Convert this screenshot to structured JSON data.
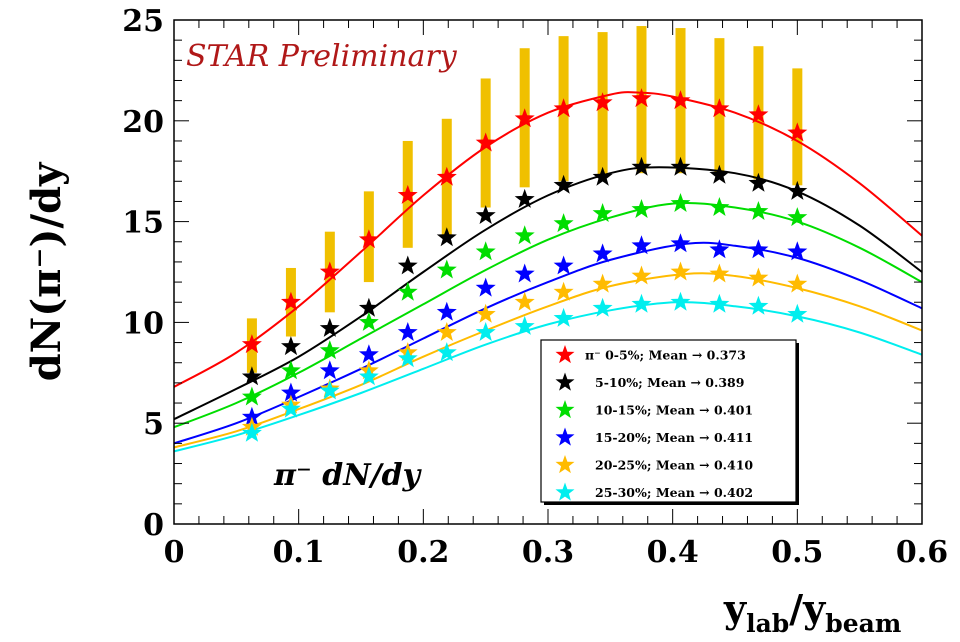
{
  "chart_data": {
    "type": "scatter",
    "title": "",
    "xlabel": {
      "main": "y",
      "sub1": "lab",
      "mid": "/y",
      "sub2": "beam"
    },
    "ylabel": "dN(π⁻)/dy",
    "xlim": [
      0,
      0.6
    ],
    "ylim": [
      0,
      25
    ],
    "xticks": [
      "0",
      "0.1",
      "0.2",
      "0.3",
      "0.4",
      "0.5",
      "0.6"
    ],
    "yticks": [
      "0",
      "5",
      "10",
      "15",
      "20",
      "25"
    ],
    "annotations": {
      "preliminary": "STAR Preliminary",
      "quantity": "π⁻ dN/dy"
    },
    "legend_position": "bottom-right",
    "x": [
      0.0625,
      0.0938,
      0.125,
      0.1563,
      0.1875,
      0.2188,
      0.25,
      0.2813,
      0.3125,
      0.3438,
      0.375,
      0.4063,
      0.4375,
      0.4688,
      0.5
    ],
    "systematic_band": {
      "color": "#f0c000",
      "low": [
        7.5,
        9.3,
        10.5,
        12.0,
        13.7,
        14.2,
        15.7,
        16.7,
        17.0,
        17.3,
        17.4,
        17.4,
        17.3,
        17.1,
        16.8
      ],
      "high": [
        10.2,
        12.7,
        14.5,
        16.5,
        19.0,
        20.1,
        22.1,
        23.6,
        24.2,
        24.4,
        24.7,
        24.6,
        24.1,
        23.7,
        22.6
      ]
    },
    "series": [
      {
        "name": "π⁻ 0-5%; Mean",
        "mean": "→ 0.373",
        "color": "#ff0000",
        "values": [
          8.9,
          11.0,
          12.5,
          14.1,
          16.3,
          17.2,
          18.9,
          20.1,
          20.6,
          20.9,
          21.1,
          21.0,
          20.6,
          20.3,
          19.4
        ],
        "curve": [
          [
            0,
            6.8
          ],
          [
            0.05,
            8.5
          ],
          [
            0.1,
            10.8
          ],
          [
            0.15,
            13.5
          ],
          [
            0.2,
            16.3
          ],
          [
            0.25,
            18.7
          ],
          [
            0.3,
            20.4
          ],
          [
            0.35,
            21.3
          ],
          [
            0.373,
            21.4
          ],
          [
            0.4,
            21.2
          ],
          [
            0.45,
            20.4
          ],
          [
            0.5,
            19.0
          ],
          [
            0.55,
            16.9
          ],
          [
            0.6,
            14.3
          ]
        ]
      },
      {
        "name": "5-10%; Mean",
        "mean": "→ 0.389",
        "color": "#000000",
        "values": [
          7.3,
          8.8,
          9.7,
          10.7,
          12.8,
          14.2,
          15.3,
          16.1,
          16.8,
          17.2,
          17.7,
          17.7,
          17.3,
          16.9,
          16.5
        ],
        "curve": [
          [
            0,
            5.2
          ],
          [
            0.05,
            6.7
          ],
          [
            0.1,
            8.3
          ],
          [
            0.15,
            10.3
          ],
          [
            0.2,
            12.5
          ],
          [
            0.25,
            14.6
          ],
          [
            0.3,
            16.3
          ],
          [
            0.35,
            17.4
          ],
          [
            0.389,
            17.7
          ],
          [
            0.45,
            17.4
          ],
          [
            0.5,
            16.5
          ],
          [
            0.55,
            14.8
          ],
          [
            0.6,
            12.5
          ]
        ]
      },
      {
        "name": "10-15%; Mean",
        "mean": "→ 0.401",
        "color": "#00dd00",
        "values": [
          6.3,
          7.6,
          8.6,
          10.0,
          11.5,
          12.6,
          13.5,
          14.3,
          14.9,
          15.4,
          15.6,
          15.9,
          15.7,
          15.5,
          15.2
        ],
        "curve": [
          [
            0,
            4.8
          ],
          [
            0.05,
            6.0
          ],
          [
            0.1,
            7.5
          ],
          [
            0.15,
            9.2
          ],
          [
            0.2,
            10.9
          ],
          [
            0.25,
            12.6
          ],
          [
            0.3,
            14.1
          ],
          [
            0.35,
            15.2
          ],
          [
            0.401,
            15.9
          ],
          [
            0.45,
            15.7
          ],
          [
            0.5,
            15.0
          ],
          [
            0.55,
            13.7
          ],
          [
            0.6,
            12.0
          ]
        ]
      },
      {
        "name": "15-20%; Mean",
        "mean": "→ 0.411",
        "color": "#0000ff",
        "values": [
          5.3,
          6.5,
          7.6,
          8.4,
          9.5,
          10.5,
          11.7,
          12.4,
          12.8,
          13.4,
          13.8,
          13.9,
          13.6,
          13.6,
          13.5
        ],
        "curve": [
          [
            0,
            4.0
          ],
          [
            0.05,
            5.0
          ],
          [
            0.1,
            6.3
          ],
          [
            0.15,
            7.7
          ],
          [
            0.2,
            9.2
          ],
          [
            0.25,
            10.7
          ],
          [
            0.3,
            12.0
          ],
          [
            0.35,
            13.1
          ],
          [
            0.411,
            13.9
          ],
          [
            0.45,
            13.8
          ],
          [
            0.5,
            13.2
          ],
          [
            0.55,
            12.1
          ],
          [
            0.6,
            10.7
          ]
        ]
      },
      {
        "name": "20-25%; Mean",
        "mean": "→ 0.410",
        "color": "#ffbb00",
        "values": [
          4.8,
          5.9,
          6.7,
          7.6,
          8.5,
          9.5,
          10.4,
          11.0,
          11.5,
          11.9,
          12.3,
          12.5,
          12.4,
          12.2,
          11.9
        ],
        "curve": [
          [
            0,
            3.8
          ],
          [
            0.05,
            4.6
          ],
          [
            0.1,
            5.7
          ],
          [
            0.15,
            6.9
          ],
          [
            0.2,
            8.3
          ],
          [
            0.25,
            9.6
          ],
          [
            0.3,
            10.8
          ],
          [
            0.35,
            11.8
          ],
          [
            0.41,
            12.4
          ],
          [
            0.45,
            12.3
          ],
          [
            0.5,
            11.7
          ],
          [
            0.55,
            10.8
          ],
          [
            0.6,
            9.6
          ]
        ]
      },
      {
        "name": "25-30%; Mean",
        "mean": "→ 0.402",
        "color": "#00eeee",
        "values": [
          4.5,
          5.7,
          6.6,
          7.3,
          8.2,
          8.5,
          9.5,
          9.8,
          10.2,
          10.7,
          10.9,
          11.0,
          10.9,
          10.8,
          10.4
        ],
        "curve": [
          [
            0,
            3.6
          ],
          [
            0.05,
            4.4
          ],
          [
            0.1,
            5.4
          ],
          [
            0.15,
            6.5
          ],
          [
            0.2,
            7.7
          ],
          [
            0.25,
            8.9
          ],
          [
            0.3,
            9.9
          ],
          [
            0.35,
            10.6
          ],
          [
            0.402,
            11.0
          ],
          [
            0.45,
            10.8
          ],
          [
            0.5,
            10.3
          ],
          [
            0.55,
            9.5
          ],
          [
            0.6,
            8.4
          ]
        ]
      }
    ]
  }
}
